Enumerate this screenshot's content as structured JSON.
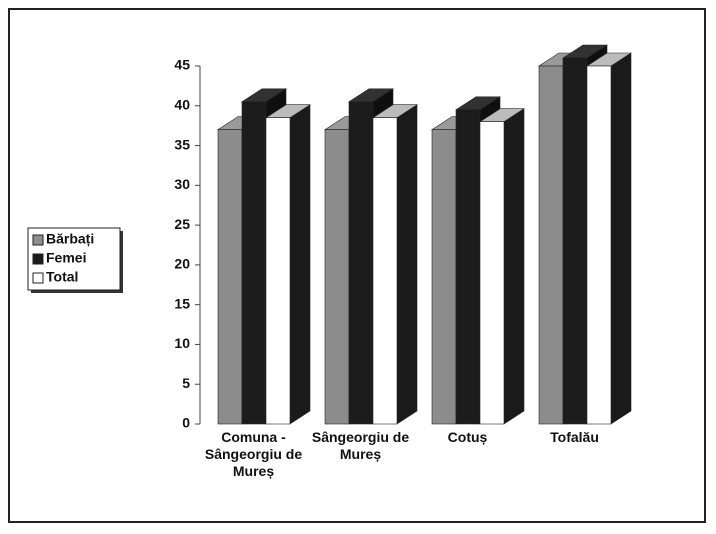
{
  "chart_data": {
    "type": "bar3d",
    "categories": [
      "Comuna - Sângeorgiu de Mureș",
      "Sângeorgiu de Mureș",
      "Cotuș",
      "Tofalău"
    ],
    "series": [
      {
        "name": "Bărbați",
        "color": "#8c8c8c",
        "values": [
          37,
          37,
          37,
          45
        ]
      },
      {
        "name": "Femei",
        "color": "#1c1c1c",
        "values": [
          40.5,
          40.5,
          39.5,
          46
        ]
      },
      {
        "name": "Total",
        "color": "#ffffff",
        "values": [
          38.5,
          38.5,
          38,
          45
        ]
      }
    ],
    "ylim": [
      0,
      45
    ],
    "yticks": [
      0,
      5,
      10,
      15,
      20,
      25,
      30,
      35,
      40,
      45
    ],
    "grid": false,
    "legend": "left"
  }
}
